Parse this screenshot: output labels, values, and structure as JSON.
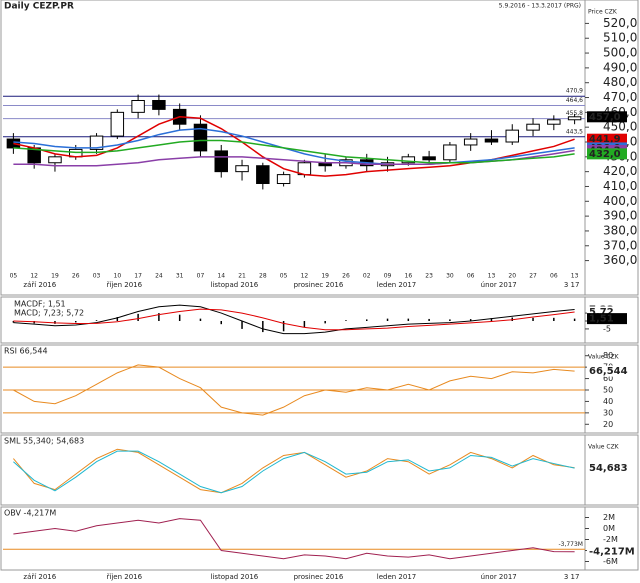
{
  "chart_data": [
    {
      "type": "candlestick",
      "title": "Daily CEZP.PR",
      "subtitle": "5.9.2016 - 13.3.2017 (PRG)",
      "axis_label": "Price CZK",
      "categories": [
        "05",
        "12",
        "19",
        "26",
        "03",
        "10",
        "17",
        "24",
        "31",
        "07",
        "14",
        "21",
        "28",
        "05",
        "12",
        "19",
        "26",
        "02",
        "09",
        "16",
        "23",
        "30",
        "06",
        "13",
        "20",
        "27",
        "06",
        "13"
      ],
      "months": [
        "září 2016",
        "říjen 2016",
        "listopad 2016",
        "prosinec 2016",
        "leden 2017",
        "únor 2017",
        "3 17"
      ],
      "open": [
        442,
        436,
        426,
        430,
        435,
        444,
        460,
        468,
        462,
        452,
        434,
        420,
        424,
        412,
        418,
        426,
        424,
        428,
        424,
        426,
        430,
        428,
        438,
        442,
        440,
        448,
        452,
        455
      ],
      "high": [
        446,
        438,
        432,
        438,
        446,
        462,
        472,
        472,
        466,
        458,
        438,
        428,
        426,
        420,
        428,
        432,
        430,
        432,
        430,
        432,
        434,
        440,
        446,
        448,
        452,
        456,
        458,
        459
      ],
      "low": [
        432,
        422,
        420,
        428,
        432,
        442,
        456,
        458,
        448,
        430,
        416,
        414,
        408,
        410,
        416,
        420,
        422,
        420,
        420,
        424,
        426,
        426,
        434,
        438,
        438,
        444,
        448,
        452
      ],
      "close": [
        436,
        426,
        430,
        435,
        444,
        460,
        468,
        462,
        452,
        434,
        420,
        424,
        412,
        418,
        426,
        424,
        428,
        424,
        426,
        430,
        428,
        438,
        442,
        440,
        448,
        452,
        455,
        457
      ],
      "close_label": "457,0",
      "up_color": "#ffffff",
      "down_color": "#000000",
      "ylim": [
        355,
        525
      ],
      "yticks": [
        {
          "value": 360,
          "label": "360,0"
        },
        {
          "value": 370,
          "label": "370,0"
        },
        {
          "value": 380,
          "label": "380,0"
        },
        {
          "value": 390,
          "label": "390,0"
        },
        {
          "value": 400,
          "label": "400,0"
        },
        {
          "value": 410,
          "label": "410,0"
        },
        {
          "value": 420,
          "label": "420,0"
        },
        {
          "value": 430,
          "label": "430,0"
        },
        {
          "value": 440,
          "label": "440,0"
        },
        {
          "value": 450,
          "label": "450,0"
        },
        {
          "value": 460,
          "label": "460,0"
        },
        {
          "value": 470,
          "label": "470,0"
        },
        {
          "value": 480,
          "label": "480,0"
        },
        {
          "value": 490,
          "label": "490,0"
        },
        {
          "value": 500,
          "label": "500,0"
        },
        {
          "value": 510,
          "label": "510,0"
        },
        {
          "value": 520,
          "label": "520,0"
        }
      ],
      "levels": [
        {
          "value": 470.9,
          "label": "470,9",
          "color": "#1a1a7a"
        },
        {
          "value": 464.6,
          "label": "464,6",
          "color": "#8a8ac8"
        },
        {
          "value": 455.8,
          "label": "455,8",
          "color": "#8a8ac8"
        },
        {
          "value": 443.5,
          "label": "443,5",
          "color": "#1a1a7a"
        }
      ],
      "series": [
        {
          "color": "#e00000",
          "label": "441,9",
          "values": [
            439,
            436,
            432,
            430,
            431,
            436,
            444,
            452,
            457,
            456,
            449,
            440,
            430,
            422,
            418,
            417,
            418,
            420,
            421,
            422,
            423,
            424,
            426,
            428,
            431,
            434,
            437,
            441.9
          ]
        },
        {
          "color": "#2a6fd8",
          "label": "436,0",
          "values": [
            440,
            439,
            437,
            436,
            436,
            438,
            441,
            445,
            448,
            449,
            447,
            444,
            440,
            436,
            432,
            429,
            427,
            426,
            425,
            425,
            425,
            426,
            427,
            428,
            430,
            432,
            434,
            436.0
          ]
        },
        {
          "color": "#8a3fa8",
          "label": "434,3",
          "values": [
            425,
            425,
            424,
            424,
            424,
            425,
            426,
            428,
            429,
            430,
            430,
            430,
            429,
            428,
            427,
            426,
            426,
            425,
            425,
            425,
            425,
            426,
            426,
            427,
            428,
            430,
            432,
            434.3
          ]
        },
        {
          "color": "#22aa22",
          "label": "432,0",
          "values": [
            436,
            435,
            434,
            433,
            433,
            434,
            436,
            438,
            440,
            441,
            441,
            440,
            438,
            436,
            434,
            432,
            430,
            429,
            428,
            427,
            426,
            426,
            426,
            427,
            428,
            429,
            430,
            432.0
          ]
        }
      ]
    },
    {
      "type": "macd",
      "title": "CEZP.PR",
      "titles": [
        "MACDF; 1,51",
        "MACD; 7,23; 5,72"
      ],
      "ylim": [
        -12,
        12
      ],
      "yticks": [
        -5,
        0,
        5
      ],
      "histogram": {
        "color": "#000000",
        "label": "1,51",
        "values": [
          -1,
          -1.5,
          -1.8,
          -0.9,
          0.5,
          2.5,
          4.5,
          5,
          4,
          1.5,
          -2,
          -5,
          -7,
          -6.5,
          -4,
          -1.5,
          0.5,
          1,
          1.5,
          1.5,
          1.3,
          1,
          1.2,
          1.8,
          2.2,
          2,
          2,
          1.51
        ]
      },
      "series": [
        {
          "color": "#000000",
          "label": "7,23",
          "values": [
            -1,
            -2,
            -3,
            -2.5,
            -1,
            2,
            6,
            9,
            10,
            9,
            5,
            0,
            -5,
            -8,
            -8,
            -7,
            -5,
            -4,
            -3,
            -2,
            -1.5,
            -1,
            0,
            1.5,
            3,
            4.5,
            6,
            7.23
          ]
        },
        {
          "color": "#e00000",
          "label": "5,72",
          "values": [
            0,
            -0.5,
            -1.2,
            -1.6,
            -1.5,
            -0.5,
            1.5,
            4,
            6,
            7.5,
            7,
            5,
            2,
            -1.5,
            -4,
            -5.5,
            -5.5,
            -5,
            -4.5,
            -3.5,
            -2.8,
            -2,
            -1.2,
            -0.3,
            0.8,
            2.5,
            4,
            5.72
          ]
        }
      ]
    },
    {
      "type": "line",
      "title": "RSI 66,544",
      "axis_label": "Value CZK",
      "ylim": [
        15,
        85
      ],
      "yticks": [
        20,
        30,
        40,
        50,
        60,
        70,
        80
      ],
      "levels": [
        70,
        50,
        30
      ],
      "series": [
        {
          "color": "#e88a20",
          "label": "66,544",
          "values": [
            50,
            40,
            38,
            45,
            55,
            65,
            72,
            70,
            60,
            52,
            35,
            30,
            28,
            35,
            45,
            50,
            48,
            52,
            50,
            55,
            50,
            58,
            62,
            60,
            66,
            65,
            68,
            66.544
          ]
        }
      ]
    },
    {
      "type": "line",
      "title": "SML 55,340; 54,683",
      "axis_label": "Value CZK",
      "ylim": [
        0,
        100
      ],
      "yticks": [],
      "levels": [],
      "series": [
        {
          "color": "#e88a20",
          "label": "55,340",
          "values": [
            70,
            30,
            20,
            45,
            70,
            85,
            80,
            60,
            40,
            20,
            15,
            30,
            55,
            75,
            80,
            60,
            40,
            50,
            70,
            65,
            45,
            60,
            80,
            70,
            55,
            75,
            60,
            55.34
          ]
        },
        {
          "color": "#20b8d0",
          "label": "54,683",
          "values": [
            65,
            35,
            18,
            40,
            65,
            82,
            82,
            65,
            45,
            25,
            15,
            25,
            50,
            70,
            80,
            65,
            45,
            48,
            65,
            68,
            50,
            55,
            75,
            72,
            58,
            70,
            62,
            54.683
          ]
        }
      ]
    },
    {
      "type": "line",
      "title": "OBV -4,217M",
      "ylim": [
        -7,
        3
      ],
      "yticks": [
        {
          "value": 2,
          "label": "2M"
        },
        {
          "value": 0,
          "label": "0M"
        },
        {
          "value": -2,
          "label": "-2M"
        },
        {
          "value": -4,
          "label": "-4M"
        },
        {
          "value": -6,
          "label": "-6M"
        }
      ],
      "levels": [
        {
          "value": -3.773,
          "label": "-3,773M"
        }
      ],
      "series": [
        {
          "color": "#a02050",
          "label": "-4,217M",
          "values": [
            -1,
            -0.5,
            0,
            -0.5,
            0.5,
            1,
            1.5,
            1,
            1.8,
            1.5,
            -4,
            -4.5,
            -5,
            -5.5,
            -4.8,
            -5,
            -5.5,
            -4.5,
            -5,
            -5.2,
            -4.8,
            -5.5,
            -5,
            -4.5,
            -4,
            -3.5,
            -4.2,
            -4.217
          ]
        }
      ]
    }
  ]
}
